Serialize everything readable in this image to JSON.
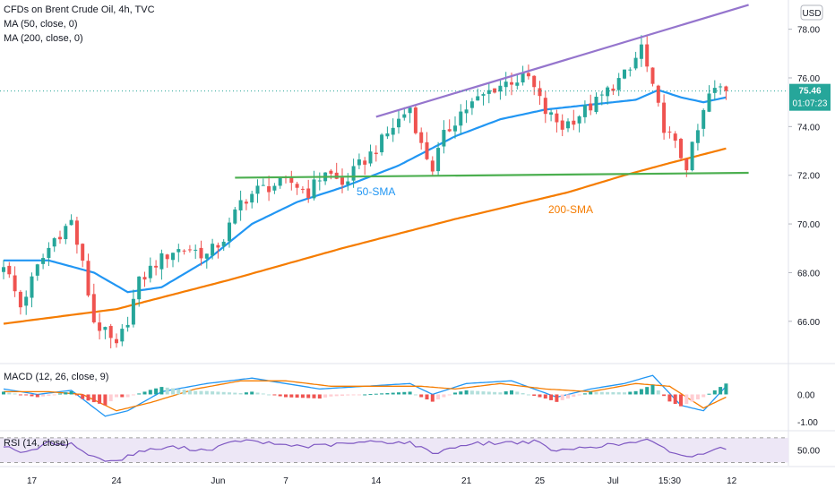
{
  "chart_data": [
    {
      "type": "candlestick",
      "title": "CFDs on Brent Crude Oil, 4h, TVC",
      "currency": "USD",
      "indicators": [
        "MA (50, close, 0)",
        "MA (200, close, 0)"
      ],
      "x_tick_labels": [
        "17",
        "24",
        "Jun",
        "7",
        "14",
        "21",
        "25",
        "Jul",
        "15:30",
        "12"
      ],
      "y_tick_labels": [
        "78.00",
        "76.00",
        "74.00",
        "72.00",
        "70.00",
        "68.00",
        "66.00"
      ],
      "ylim": [
        64.3,
        79.2
      ],
      "last_price": "75.46",
      "countdown": "01:07:23",
      "annotations": [
        "50-SMA",
        "200-SMA"
      ],
      "close_path": [
        [
          0,
          68.4
        ],
        [
          3,
          66.6
        ],
        [
          6,
          68.2
        ],
        [
          9,
          69.4
        ],
        [
          12,
          70.1
        ],
        [
          14,
          68.3
        ],
        [
          16,
          66.0
        ],
        [
          18,
          65.5
        ],
        [
          20,
          64.9
        ],
        [
          22,
          66.1
        ],
        [
          24,
          67.6
        ],
        [
          27,
          68.4
        ],
        [
          30,
          68.9
        ],
        [
          33,
          69.0
        ],
        [
          36,
          68.7
        ],
        [
          39,
          69.4
        ],
        [
          42,
          70.9
        ],
        [
          45,
          71.4
        ],
        [
          48,
          71.6
        ],
        [
          51,
          71.7
        ],
        [
          54,
          71.3
        ],
        [
          57,
          72.2
        ],
        [
          60,
          71.6
        ],
        [
          63,
          72.4
        ],
        [
          66,
          73.1
        ],
        [
          69,
          74.0
        ],
        [
          72,
          74.8
        ],
        [
          74,
          73.2
        ],
        [
          76,
          72.3
        ],
        [
          78,
          73.6
        ],
        [
          81,
          74.6
        ],
        [
          84,
          75.1
        ],
        [
          87,
          75.6
        ],
        [
          90,
          75.9
        ],
        [
          93,
          76.0
        ],
        [
          96,
          74.6
        ],
        [
          99,
          74.0
        ],
        [
          102,
          74.5
        ],
        [
          105,
          75.0
        ],
        [
          108,
          75.7
        ],
        [
          111,
          76.3
        ],
        [
          113,
          77.3
        ],
        [
          115,
          75.5
        ],
        [
          117,
          74.0
        ],
        [
          119,
          73.2
        ],
        [
          121,
          72.4
        ],
        [
          123,
          73.8
        ],
        [
          125,
          75.3
        ],
        [
          127,
          75.6
        ],
        [
          128,
          75.46
        ]
      ],
      "series": [
        {
          "name": "50-SMA",
          "color": "#2196f3",
          "points": [
            [
              0,
              68.5
            ],
            [
              8,
              68.5
            ],
            [
              16,
              68.0
            ],
            [
              22,
              67.2
            ],
            [
              28,
              67.4
            ],
            [
              36,
              68.5
            ],
            [
              44,
              70.0
            ],
            [
              52,
              70.9
            ],
            [
              60,
              71.5
            ],
            [
              70,
              72.4
            ],
            [
              80,
              73.6
            ],
            [
              88,
              74.3
            ],
            [
              96,
              74.7
            ],
            [
              104,
              74.9
            ],
            [
              112,
              75.1
            ],
            [
              116,
              75.5
            ],
            [
              120,
              75.2
            ],
            [
              124,
              75.0
            ],
            [
              128,
              75.2
            ]
          ]
        },
        {
          "name": "200-SMA",
          "color": "#f57c00",
          "points": [
            [
              0,
              65.9
            ],
            [
              20,
              66.5
            ],
            [
              40,
              67.7
            ],
            [
              60,
              69.0
            ],
            [
              80,
              70.2
            ],
            [
              100,
              71.3
            ],
            [
              110,
              72.0
            ],
            [
              118,
              72.5
            ],
            [
              128,
              73.1
            ]
          ]
        }
      ],
      "trendlines": [
        {
          "name": "upper-channel",
          "color": "#9575cd",
          "from": [
            66,
            74.4
          ],
          "to": [
            132,
            79.0
          ]
        },
        {
          "name": "support",
          "color": "#4caf50",
          "from": [
            41,
            71.9
          ],
          "to": [
            132,
            72.1
          ]
        }
      ],
      "num_bars": 129
    },
    {
      "type": "histogram+line",
      "title": "MACD (12, 26, close, 9)",
      "y_tick_labels": [
        "0.00",
        "-1.00"
      ],
      "ylim": [
        -1.3,
        1.1
      ],
      "macd": [
        [
          0,
          0.2
        ],
        [
          6,
          0.0
        ],
        [
          12,
          0.15
        ],
        [
          18,
          -0.8
        ],
        [
          22,
          -0.6
        ],
        [
          28,
          0.1
        ],
        [
          36,
          0.4
        ],
        [
          44,
          0.6
        ],
        [
          50,
          0.4
        ],
        [
          56,
          0.2
        ],
        [
          64,
          0.3
        ],
        [
          72,
          0.4
        ],
        [
          76,
          0.0
        ],
        [
          82,
          0.4
        ],
        [
          90,
          0.5
        ],
        [
          98,
          -0.1
        ],
        [
          104,
          0.2
        ],
        [
          110,
          0.4
        ],
        [
          115,
          0.7
        ],
        [
          120,
          -0.4
        ],
        [
          124,
          -0.6
        ],
        [
          128,
          0.3
        ]
      ],
      "signal": [
        [
          0,
          0.1
        ],
        [
          8,
          0.1
        ],
        [
          14,
          0.0
        ],
        [
          20,
          -0.6
        ],
        [
          26,
          -0.3
        ],
        [
          34,
          0.2
        ],
        [
          42,
          0.5
        ],
        [
          50,
          0.5
        ],
        [
          58,
          0.3
        ],
        [
          66,
          0.3
        ],
        [
          74,
          0.3
        ],
        [
          80,
          0.2
        ],
        [
          88,
          0.4
        ],
        [
          96,
          0.2
        ],
        [
          104,
          0.1
        ],
        [
          112,
          0.4
        ],
        [
          118,
          0.3
        ],
        [
          124,
          -0.5
        ],
        [
          128,
          -0.1
        ]
      ],
      "colors": {
        "macd": "#2196f3",
        "signal": "#f57c00",
        "hist_up": "#26a69a",
        "hist_down": "#ef5350"
      }
    },
    {
      "type": "line",
      "title": "RSI (14, close)",
      "y_tick_labels": [
        "50.00"
      ],
      "ylim": [
        25,
        80
      ],
      "rsi": [
        [
          0,
          58
        ],
        [
          4,
          45
        ],
        [
          8,
          62
        ],
        [
          12,
          60
        ],
        [
          16,
          38
        ],
        [
          20,
          32
        ],
        [
          24,
          48
        ],
        [
          30,
          55
        ],
        [
          36,
          50
        ],
        [
          42,
          66
        ],
        [
          48,
          60
        ],
        [
          54,
          56
        ],
        [
          60,
          60
        ],
        [
          66,
          64
        ],
        [
          72,
          62
        ],
        [
          76,
          45
        ],
        [
          82,
          60
        ],
        [
          88,
          62
        ],
        [
          94,
          64
        ],
        [
          98,
          48
        ],
        [
          104,
          56
        ],
        [
          110,
          60
        ],
        [
          114,
          66
        ],
        [
          118,
          48
        ],
        [
          122,
          38
        ],
        [
          126,
          54
        ],
        [
          128,
          54
        ]
      ],
      "band": [
        30,
        70
      ],
      "colors": {
        "line": "#7e57c2",
        "band": "#ede7f6"
      }
    }
  ]
}
